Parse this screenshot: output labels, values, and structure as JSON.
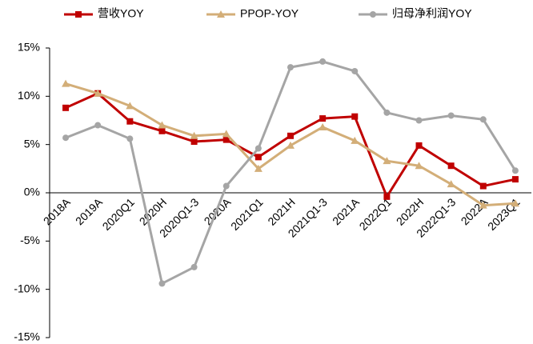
{
  "chart_data": {
    "type": "line",
    "categories": [
      "2018A",
      "2019A",
      "2020Q1",
      "2020H",
      "2020Q1-3",
      "2020A",
      "2021Q1",
      "2021H",
      "2021Q1-3",
      "2021A",
      "2022Q1",
      "2022H",
      "2022Q1-3",
      "2022A",
      "2023Q1"
    ],
    "series": [
      {
        "name": "营收YOY",
        "color": "#c00000",
        "marker": "square",
        "values": [
          8.8,
          10.3,
          7.4,
          6.4,
          5.3,
          5.5,
          3.7,
          5.9,
          7.7,
          7.9,
          -0.4,
          4.9,
          2.8,
          0.7,
          1.4
        ]
      },
      {
        "name": "PPOP-YOY",
        "color": "#d3ae78",
        "marker": "triangle",
        "values": [
          11.3,
          10.3,
          9.0,
          7.0,
          5.9,
          6.1,
          2.5,
          4.9,
          6.8,
          5.4,
          3.3,
          2.8,
          0.9,
          -1.3,
          -1.1
        ]
      },
      {
        "name": "归母净利润YOY",
        "color": "#a5a5a5",
        "marker": "circle",
        "values": [
          5.7,
          7.0,
          5.6,
          -9.4,
          -7.7,
          0.7,
          4.6,
          13.0,
          13.6,
          12.6,
          8.3,
          7.5,
          8.0,
          7.6,
          2.3
        ]
      }
    ],
    "ylim": [
      -15,
      15
    ],
    "yticks": [
      {
        "value": 15,
        "label": "15%"
      },
      {
        "value": 10,
        "label": "10%"
      },
      {
        "value": 5,
        "label": "5%"
      },
      {
        "value": 0,
        "label": "0%"
      },
      {
        "value": -5,
        "label": "-5%"
      },
      {
        "value": -10,
        "label": "-10%"
      },
      {
        "value": -15,
        "label": "-15%"
      }
    ],
    "legend": "top"
  }
}
